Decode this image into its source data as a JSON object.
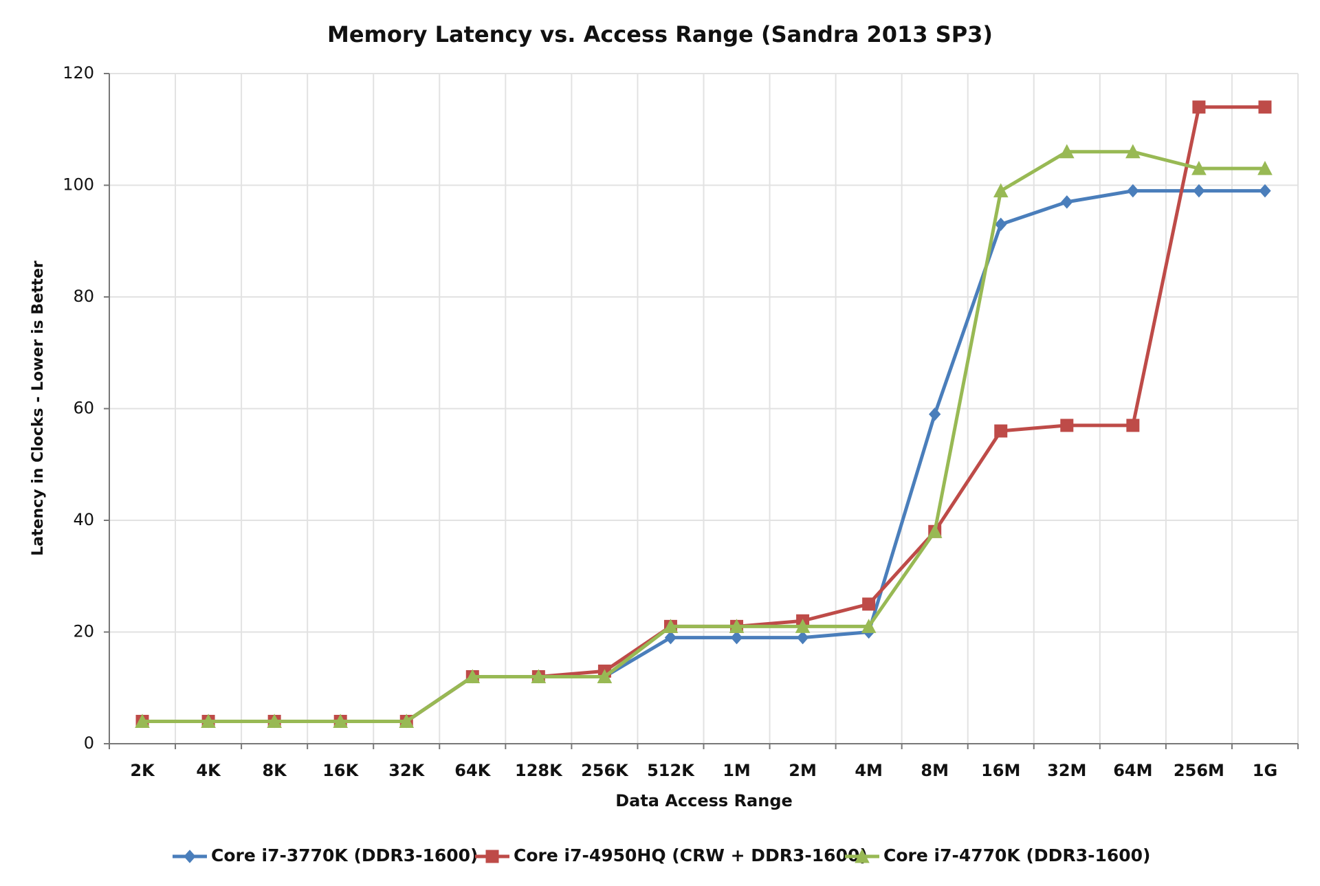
{
  "chart_data": {
    "type": "line",
    "title": "Memory Latency vs. Access Range (Sandra 2013 SP3)",
    "x_label": "Data Access Range",
    "y_label": "Latency in Clocks - Lower is Better",
    "categories": [
      "2K",
      "4K",
      "8K",
      "16K",
      "32K",
      "64K",
      "128K",
      "256K",
      "512K",
      "1M",
      "2M",
      "4M",
      "8M",
      "16M",
      "32M",
      "64M",
      "256M",
      "1G"
    ],
    "series": [
      {
        "name": "Core i7-3770K (DDR3-1600)",
        "color": "#4a7ebb",
        "marker": "diamond",
        "values": [
          4,
          4,
          4,
          4,
          4,
          12,
          12,
          12,
          19,
          19,
          19,
          20,
          59,
          93,
          97,
          99,
          99,
          99
        ]
      },
      {
        "name": "Core i7-4950HQ (CRW + DDR3-1600)",
        "color": "#be4b48",
        "marker": "square",
        "values": [
          4,
          4,
          4,
          4,
          4,
          12,
          12,
          13,
          21,
          21,
          22,
          25,
          38,
          56,
          57,
          57,
          114,
          114
        ]
      },
      {
        "name": "Core i7-4770K (DDR3-1600)",
        "color": "#98b954",
        "marker": "triangle",
        "values": [
          4,
          4,
          4,
          4,
          4,
          12,
          12,
          12,
          21,
          21,
          21,
          21,
          38,
          99,
          106,
          106,
          103,
          103
        ]
      }
    ],
    "ylim": [
      0,
      120
    ],
    "yticks": [
      0,
      20,
      40,
      60,
      80,
      100,
      120
    ],
    "grid": true,
    "legend": "bottom"
  }
}
